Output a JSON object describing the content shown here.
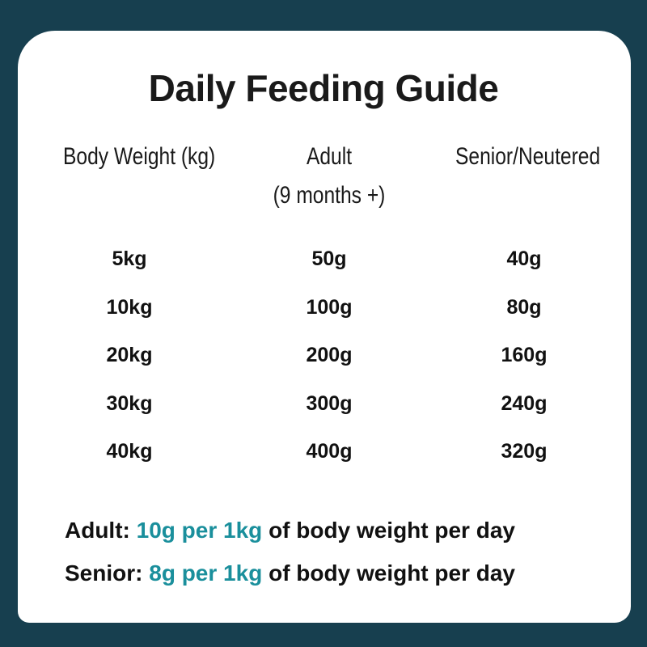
{
  "title": "Daily Feeding Guide",
  "headers": {
    "weight": "Body Weight (kg)",
    "adult": "Adult",
    "adult_sub": "(9 months +)",
    "senior": "Senior/Neutered"
  },
  "rows": [
    {
      "weight": "5kg",
      "adult": "50g",
      "senior": "40g"
    },
    {
      "weight": "10kg",
      "adult": "100g",
      "senior": "80g"
    },
    {
      "weight": "20kg",
      "adult": "200g",
      "senior": "160g"
    },
    {
      "weight": "30kg",
      "adult": "300g",
      "senior": "240g"
    },
    {
      "weight": "40kg",
      "adult": "400g",
      "senior": "320g"
    }
  ],
  "footer": {
    "adult_label": "Adult:",
    "adult_rate": "10g per 1kg",
    "adult_rest": "of body weight per day",
    "senior_label": "Senior:",
    "senior_rate": "8g per 1kg",
    "senior_rest": "of body weight per day"
  },
  "colors": {
    "background": "#173f4f",
    "accent": "#1a8f9c",
    "card": "#ffffff"
  }
}
